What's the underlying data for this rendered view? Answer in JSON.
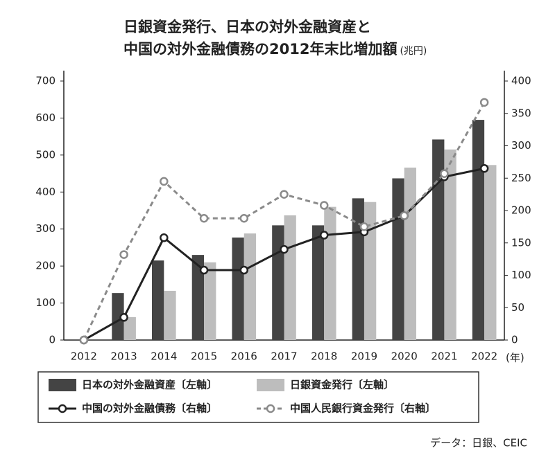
{
  "chart_data": {
    "type": "bar_line",
    "title": [
      "日銀資金発行、日本の対外金融資産と",
      "中国の対外金融債務の2012年末比増加額"
    ],
    "unit": "(兆円)",
    "x_unit": "(年)",
    "categories": [
      "2012",
      "2013",
      "2014",
      "2015",
      "2016",
      "2017",
      "2018",
      "2019",
      "2020",
      "2021",
      "2022"
    ],
    "ylim": [
      0,
      700
    ],
    "yticks": [
      0,
      100,
      200,
      300,
      400,
      500,
      600,
      700
    ],
    "y2lim": [
      0,
      400
    ],
    "y2ticks": [
      0,
      50,
      100,
      150,
      200,
      250,
      300,
      350,
      400
    ],
    "series": [
      {
        "name": "日本の対外金融資産〔左軸〕",
        "type": "bar",
        "color": "#444444",
        "values": [
          0,
          127,
          215,
          230,
          277,
          310,
          310,
          383,
          437,
          542,
          595
        ]
      },
      {
        "name": "日銀資金発行〔左軸〕",
        "type": "bar",
        "color": "#bdbdbd",
        "values": [
          0,
          62,
          133,
          210,
          288,
          337,
          360,
          373,
          466,
          515,
          473
        ]
      },
      {
        "name": "中国の対外金融債務〔右軸〕",
        "type": "line",
        "axis": "y2",
        "color": "#222222",
        "dashed": false,
        "values": [
          0,
          35,
          158,
          108,
          108,
          140,
          162,
          167,
          192,
          252,
          265
        ]
      },
      {
        "name": "中国人民銀行資金発行〔右軸〕",
        "type": "line",
        "axis": "y2",
        "color": "#8a8a8a",
        "dashed": true,
        "values": [
          0,
          132,
          245,
          188,
          188,
          225,
          208,
          175,
          192,
          257,
          367
        ]
      }
    ],
    "source": "データ：日銀、CEIC"
  }
}
